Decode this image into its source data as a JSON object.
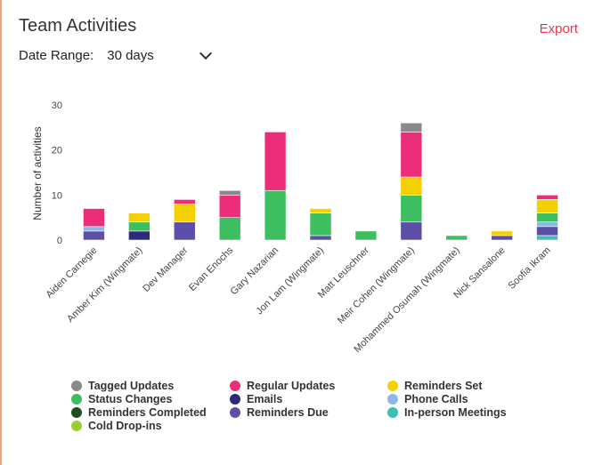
{
  "header": {
    "title": "Team Activities",
    "export_label": "Export"
  },
  "filters": {
    "date_range_label": "Date Range:",
    "date_range_value": "30 days"
  },
  "chart_data": {
    "type": "bar",
    "stacked": true,
    "title": "",
    "xlabel": "",
    "ylabel": "Number of activities",
    "ylim": [
      0,
      30
    ],
    "yticks": [
      0,
      10,
      20,
      30
    ],
    "grid": false,
    "legend_position": "bottom",
    "categories": [
      "Aiden Carnegie",
      "Amber Kim (Wingmate)",
      "Dev Manager",
      "Evan Enochs",
      "Gary Nazarian",
      "Jon Lam (Wingmate)",
      "Matt Leuschner",
      "Meir Cohen (Wingmate)",
      "Mohammed Osumah (Wingmate)",
      "Nick Sansalone",
      "Soofia Ikram"
    ],
    "series": [
      {
        "name": "In-person Meetings",
        "color": "#3cc0b0",
        "values": [
          0,
          0,
          0,
          0,
          0,
          0,
          0,
          0,
          0,
          0,
          1
        ]
      },
      {
        "name": "Cold Drop-ins",
        "color": "#9acd32",
        "values": [
          0,
          0,
          0,
          0,
          0,
          0,
          0,
          0,
          0,
          0,
          0
        ]
      },
      {
        "name": "Reminders Due",
        "color": "#5b4fa8",
        "values": [
          2,
          0,
          4,
          0,
          0,
          1,
          0,
          4,
          0,
          1,
          2
        ]
      },
      {
        "name": "Emails",
        "color": "#2e2a7a",
        "values": [
          0,
          2,
          0,
          0,
          0,
          0,
          0,
          0,
          0,
          0,
          0
        ]
      },
      {
        "name": "Reminders Completed",
        "color": "#1e4d1e",
        "values": [
          0,
          0,
          0,
          0,
          0,
          0,
          0,
          0,
          0,
          0,
          0
        ]
      },
      {
        "name": "Phone Calls",
        "color": "#8ab8e8",
        "values": [
          1,
          0,
          0,
          0,
          0,
          0,
          0,
          0,
          0,
          0,
          1
        ]
      },
      {
        "name": "Status Changes",
        "color": "#3dbf5f",
        "values": [
          0,
          2,
          0,
          5,
          11,
          5,
          2,
          6,
          1,
          0,
          2
        ]
      },
      {
        "name": "Reminders Set",
        "color": "#f5d000",
        "values": [
          0,
          2,
          4,
          0,
          0,
          1,
          0,
          4,
          0,
          1,
          3
        ]
      },
      {
        "name": "Regular Updates",
        "color": "#ec2d7a",
        "values": [
          4,
          0,
          1,
          5,
          13,
          0,
          0,
          10,
          0,
          0,
          1
        ]
      },
      {
        "name": "Tagged Updates",
        "color": "#8a8a8a",
        "values": [
          0,
          0,
          0,
          1,
          0,
          0,
          0,
          2,
          0,
          0,
          0
        ]
      }
    ]
  },
  "legend": {
    "items": [
      {
        "label": "Tagged Updates",
        "color": "#8a8a8a"
      },
      {
        "label": "Regular Updates",
        "color": "#ec2d7a"
      },
      {
        "label": "Reminders Set",
        "color": "#f5d000"
      },
      {
        "label": "Status Changes",
        "color": "#3dbf5f"
      },
      {
        "label": "Emails",
        "color": "#2e2a7a"
      },
      {
        "label": "Phone Calls",
        "color": "#8ab8e8"
      },
      {
        "label": "Reminders Completed",
        "color": "#1e4d1e"
      },
      {
        "label": "Reminders Due",
        "color": "#5b4fa8"
      },
      {
        "label": "In-person Meetings",
        "color": "#3cc0b0"
      },
      {
        "label": "Cold Drop-ins",
        "color": "#9acd32"
      }
    ]
  }
}
